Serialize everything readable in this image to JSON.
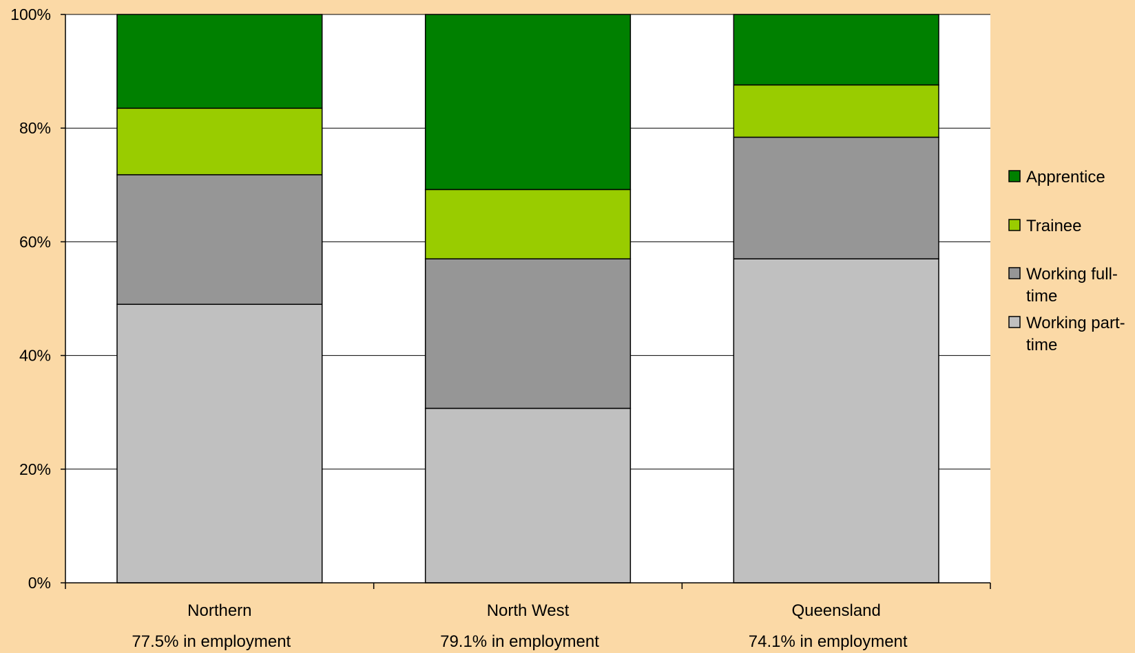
{
  "chart_data": {
    "type": "bar",
    "stacked": true,
    "percent_stacked": true,
    "categories": [
      "Northern",
      "North West",
      "Queensland"
    ],
    "category_notes": [
      "77.5% in employment",
      "79.1% in employment",
      "74.1% in employment"
    ],
    "series": [
      {
        "name": "Working part-time",
        "color": "#c0c0c0",
        "values": [
          49.0,
          30.7,
          57.0
        ]
      },
      {
        "name": "Working full-time",
        "color": "#969696",
        "values": [
          22.8,
          26.3,
          21.4
        ]
      },
      {
        "name": "Trainee",
        "color": "#99cc00",
        "values": [
          11.7,
          12.2,
          9.2
        ]
      },
      {
        "name": "Apprentice",
        "color": "#008000",
        "values": [
          16.5,
          30.8,
          12.4
        ]
      }
    ],
    "y_ticks": [
      "0%",
      "20%",
      "40%",
      "60%",
      "80%",
      "100%"
    ],
    "ylim": [
      0,
      100
    ],
    "grid": true,
    "legend_position": "right",
    "legend_order": [
      "Apprentice",
      "Trainee",
      "Working full-time",
      "Working part-time"
    ],
    "legend_lines": {
      "Apprentice": [
        "Apprentice"
      ],
      "Trainee": [
        "Trainee"
      ],
      "Working full-time": [
        "Working full-",
        "time"
      ],
      "Working part-time": [
        "Working part-",
        "time"
      ]
    },
    "title": "",
    "xlabel": "",
    "ylabel": ""
  },
  "colors": {
    "page_background": "#fbd9a6",
    "plot_background": "#ffffff",
    "gridline": "#000000"
  }
}
